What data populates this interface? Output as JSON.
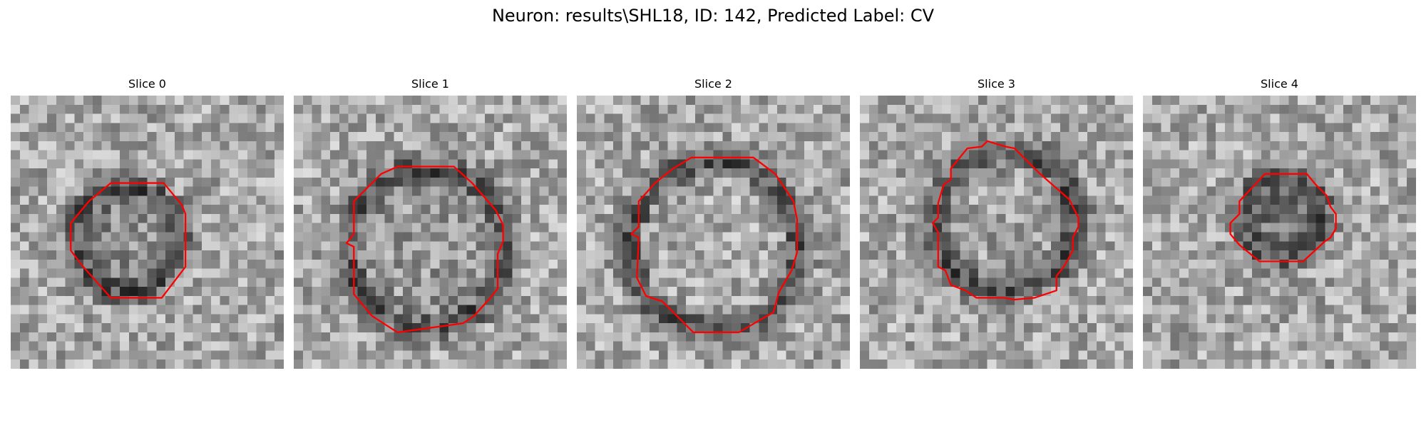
{
  "figure": {
    "title": "Neuron: results\\SHL18, ID: 142, Predicted Label: CV",
    "colors": {
      "background": "#ffffff",
      "contour": "#ff0000",
      "colormap": "gray"
    },
    "panels": [
      {
        "title": "Slice 0"
      },
      {
        "title": "Slice 1"
      },
      {
        "title": "Slice 2"
      },
      {
        "title": "Slice 3"
      },
      {
        "title": "Slice 4"
      }
    ]
  }
}
